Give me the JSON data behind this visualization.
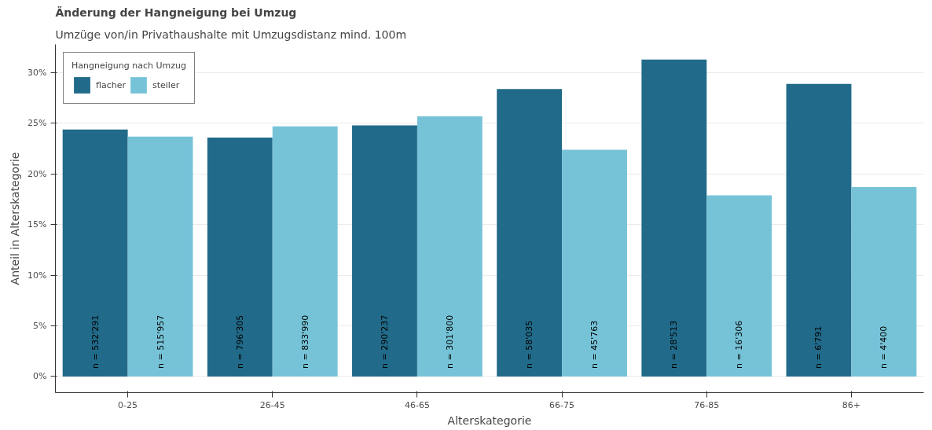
{
  "chart_data": {
    "type": "bar",
    "title": "Änderung der Hangneigung bei Umzug",
    "subtitle": "Umzüge von/in Privathaushalte mit Umzugsdistanz mind. 100m",
    "xlabel": "Alterskategorie",
    "ylabel": "Anteil in Alterskategorie",
    "legend_title": "Hangneigung nach Umzug",
    "categories": [
      "0-25",
      "26-45",
      "46-65",
      "66-75",
      "76-85",
      "86+"
    ],
    "series": [
      {
        "name": "flacher",
        "color": "#216a89",
        "values": [
          24.4,
          23.6,
          24.8,
          28.4,
          31.3,
          28.9
        ]
      },
      {
        "name": "steiler",
        "color": "#76c3d8",
        "values": [
          23.7,
          24.7,
          25.7,
          22.4,
          17.9,
          18.7
        ]
      }
    ],
    "annotations": [
      "n = 532'291",
      "n = 515'957",
      "n = 796'305",
      "n = 833'990",
      "n = 290'237",
      "n = 301'800",
      "n = 58'035",
      "n = 45'763",
      "n = 28'513",
      "n = 16'306",
      "n = 6'791",
      "n = 4'400"
    ],
    "ylim": [
      -1.6,
      32.8
    ],
    "yticks": [
      {
        "value": 0,
        "label": "0%"
      },
      {
        "value": 5,
        "label": "5%"
      },
      {
        "value": 10,
        "label": "10%"
      },
      {
        "value": 15,
        "label": "15%"
      },
      {
        "value": 20,
        "label": "20%"
      },
      {
        "value": 25,
        "label": "25%"
      },
      {
        "value": 30,
        "label": "30%"
      }
    ],
    "grid": "y",
    "legend": "top left"
  }
}
